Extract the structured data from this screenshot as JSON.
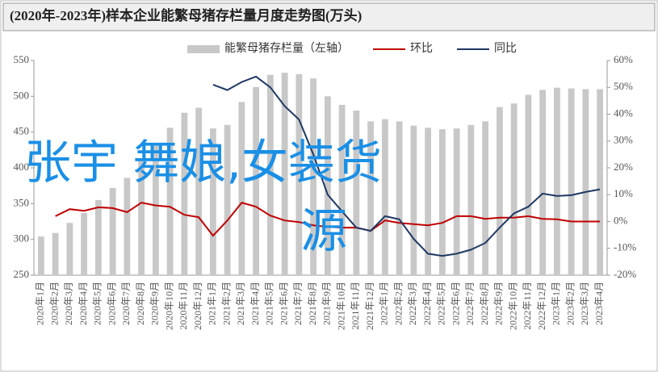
{
  "chart_data": {
    "type": "bar-line",
    "title": "(2020年-2023年)样本企业能繁母猪存栏量月度走势图(万头)",
    "annotations": [
      "张宇 舞娘,女装货",
      "源"
    ],
    "categories": [
      "2020年1月",
      "2020年2月",
      "2020年3月",
      "2020年4月",
      "2020年5月",
      "2020年6月",
      "2020年7月",
      "2020年8月",
      "2020年9月",
      "2020年10月",
      "2020年11月",
      "2020年12月",
      "2021年1月",
      "2021年2月",
      "2021年3月",
      "2021年4月",
      "2021年5月",
      "2021年6月",
      "2021年7月",
      "2021年8月",
      "2021年9月",
      "2021年10月",
      "2021年11月",
      "2021年12月",
      "2022年1月",
      "2022年2月",
      "2022年3月",
      "2022年4月",
      "2022年5月",
      "2022年6月",
      "2022年7月",
      "2022年8月",
      "2022年9月",
      "2022年10月",
      "2022年11月",
      "2022年12月",
      "2023年1月",
      "2023年2月",
      "2023年3月",
      "2023年4月"
    ],
    "series": [
      {
        "name": "能繁母猪存栏量（左轴）",
        "type": "bar",
        "color": "#c8c8c8",
        "values": [
          304,
          309,
          323,
          337,
          355,
          372,
          386,
          413,
          434,
          456,
          477,
          484,
          455,
          460,
          492,
          513,
          530,
          533,
          531,
          525,
          500,
          488,
          480,
          465,
          468,
          465,
          459,
          456,
          454,
          455,
          460,
          465,
          485,
          490,
          502,
          509,
          512,
          511,
          510,
          510
        ]
      },
      {
        "name": "环比",
        "type": "line",
        "axis": "y2",
        "color": "#c00000",
        "values": [
          null,
          2,
          4.6,
          4,
          5.3,
          5,
          3.5,
          7,
          6,
          5.5,
          2.5,
          1.6,
          -5.3,
          0.4,
          7,
          5.5,
          2.2,
          0.4,
          -0.2,
          -1.4,
          -2,
          -2.3,
          -2.3,
          -3.5,
          0.4,
          -0.5,
          -1,
          -1.4,
          -0.5,
          2,
          2,
          1,
          1.4,
          1.4,
          2,
          1,
          0.8,
          0,
          0,
          0
        ]
      },
      {
        "name": "同比",
        "type": "line",
        "axis": "y2",
        "color": "#1f3864",
        "values": [
          null,
          null,
          null,
          null,
          null,
          null,
          null,
          null,
          null,
          null,
          null,
          null,
          51,
          49,
          52,
          54,
          50,
          43,
          38,
          25,
          10,
          3.8,
          -2.3,
          -3.5,
          2,
          0.8,
          -6.5,
          -12,
          -12.8,
          -12,
          -10.5,
          -8,
          -2.3,
          3,
          5.5,
          10.4,
          9.5,
          9.8,
          11,
          12
        ]
      }
    ],
    "ylim": [
      250,
      550
    ],
    "yticks": [
      250,
      300,
      350,
      400,
      450,
      500,
      550
    ],
    "y2lim": [
      -20,
      60
    ],
    "y2ticks": [
      {
        "value": -20,
        "label": "-20%"
      },
      {
        "value": -10,
        "label": "-10%"
      },
      {
        "value": 0,
        "label": "0%"
      },
      {
        "value": 10,
        "label": "10%"
      },
      {
        "value": 20,
        "label": "20%"
      },
      {
        "value": 30,
        "label": "30%"
      },
      {
        "value": 40,
        "label": "40%"
      },
      {
        "value": 50,
        "label": "50%"
      },
      {
        "value": 60,
        "label": "60%"
      }
    ],
    "legend": "top"
  }
}
